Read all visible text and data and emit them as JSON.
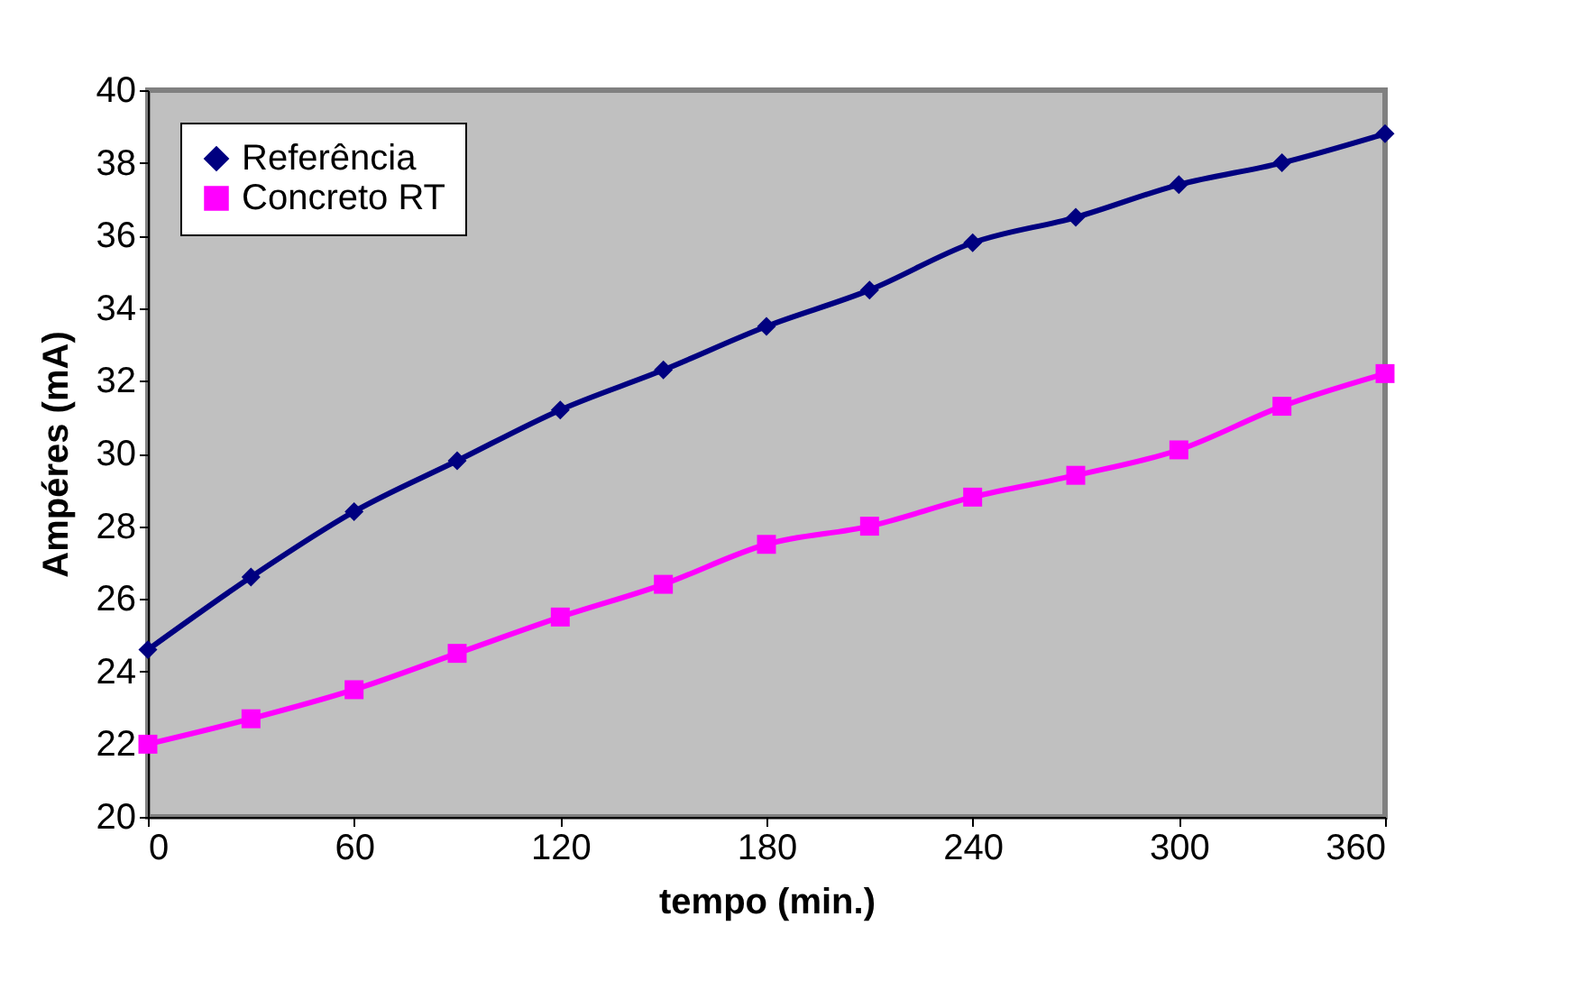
{
  "chart_data": {
    "type": "line",
    "xlabel": "tempo (min.)",
    "ylabel": "Ampéres (mA)",
    "x": [
      0,
      30,
      60,
      90,
      120,
      150,
      180,
      210,
      240,
      270,
      300,
      330,
      360
    ],
    "xlim": [
      0,
      360
    ],
    "xticks": [
      0,
      60,
      120,
      180,
      240,
      300,
      360
    ],
    "ylim": [
      20,
      40
    ],
    "yticks": [
      20,
      22,
      24,
      26,
      28,
      30,
      32,
      34,
      36,
      38,
      40
    ],
    "grid": false,
    "legend": "top left",
    "line_style": "solid",
    "series": [
      {
        "name": "Referência",
        "color": "#000080",
        "marker": "diamond",
        "values": [
          24.6,
          26.6,
          28.4,
          29.8,
          31.2,
          32.3,
          33.5,
          34.5,
          35.8,
          36.5,
          37.4,
          38.0,
          38.8
        ]
      },
      {
        "name": "Concreto RT",
        "color": "#ff00ff",
        "marker": "square",
        "values": [
          22.0,
          22.7,
          23.5,
          24.5,
          25.5,
          26.4,
          27.5,
          28.0,
          28.8,
          29.4,
          30.1,
          31.3,
          32.2
        ]
      }
    ]
  }
}
